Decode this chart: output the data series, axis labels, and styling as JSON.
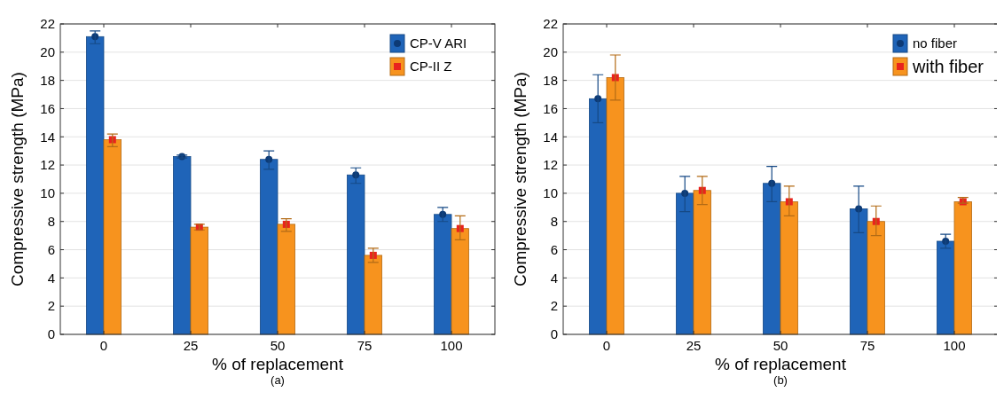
{
  "chart_data": [
    {
      "type": "bar",
      "categories": [
        "0",
        "25",
        "50",
        "75",
        "100"
      ],
      "xlabel": "% of replacement",
      "ylabel": "Compressive strength (MPa)",
      "ylim": [
        0,
        22
      ],
      "yticks": [
        0,
        2,
        4,
        6,
        8,
        10,
        12,
        14,
        16,
        18,
        20,
        22
      ],
      "grid": "y",
      "legend": "top right",
      "annotations": [
        "(a)"
      ],
      "series": [
        {
          "name": "CP-V ARI",
          "color": "#1f64b8",
          "values": [
            21.1,
            12.6,
            12.4,
            11.3,
            8.5
          ],
          "errors": [
            [
              20.6,
              21.5
            ],
            [
              12.5,
              12.7
            ],
            [
              11.7,
              13.0
            ],
            [
              10.7,
              11.8
            ],
            [
              8.0,
              9.0
            ]
          ]
        },
        {
          "name": "CP-II Z",
          "color": "#f7931e",
          "values": [
            13.8,
            7.6,
            7.8,
            5.6,
            7.5
          ],
          "errors": [
            [
              13.3,
              14.2
            ],
            [
              7.4,
              7.8
            ],
            [
              7.3,
              8.2
            ],
            [
              5.1,
              6.1
            ],
            [
              6.7,
              8.4
            ]
          ]
        },
        {
          "type": "scatter",
          "marker": "circle",
          "color": "#0d3a75",
          "x": [
            "0",
            "25",
            "50",
            "75",
            "100"
          ],
          "values": [
            21.1,
            12.6,
            12.4,
            11.3,
            8.5
          ]
        },
        {
          "type": "scatter",
          "marker": "square",
          "color": "#e8231e",
          "x": [
            "0",
            "25",
            "50",
            "75",
            "100"
          ],
          "values": [
            13.8,
            7.6,
            7.8,
            5.6,
            7.5
          ]
        }
      ]
    },
    {
      "type": "bar",
      "categories": [
        "0",
        "25",
        "50",
        "75",
        "100"
      ],
      "xlabel": "% of replacement",
      "ylabel": "Compressive strength (MPa)",
      "ylim": [
        0,
        22
      ],
      "yticks": [
        0,
        2,
        4,
        6,
        8,
        10,
        12,
        14,
        16,
        18,
        20,
        22
      ],
      "grid": "y",
      "legend": "top right",
      "annotations": [
        "(b)"
      ],
      "series": [
        {
          "name": "no fiber",
          "color": "#1f64b8",
          "values": [
            16.7,
            10.0,
            10.7,
            8.9,
            6.6
          ],
          "errors": [
            [
              15.0,
              18.4
            ],
            [
              8.7,
              11.2
            ],
            [
              9.4,
              11.9
            ],
            [
              7.2,
              10.5
            ],
            [
              6.1,
              7.1
            ]
          ]
        },
        {
          "name": "with fiber",
          "color": "#f7931e",
          "values": [
            18.2,
            10.2,
            9.4,
            8.0,
            9.4
          ],
          "errors": [
            [
              16.6,
              19.8
            ],
            [
              9.2,
              11.2
            ],
            [
              8.4,
              10.5
            ],
            [
              7.0,
              9.1
            ],
            [
              9.3,
              9.7
            ]
          ]
        },
        {
          "type": "scatter",
          "marker": "circle",
          "color": "#0d3a75",
          "x": [
            "0",
            "25",
            "50",
            "75",
            "100"
          ],
          "values": [
            16.7,
            10.0,
            10.7,
            8.9,
            6.6
          ]
        },
        {
          "type": "scatter",
          "marker": "square",
          "color": "#e8231e",
          "x": [
            "0",
            "25",
            "50",
            "75",
            "100"
          ],
          "values": [
            18.2,
            10.2,
            9.4,
            8.0,
            9.4
          ]
        }
      ]
    }
  ]
}
